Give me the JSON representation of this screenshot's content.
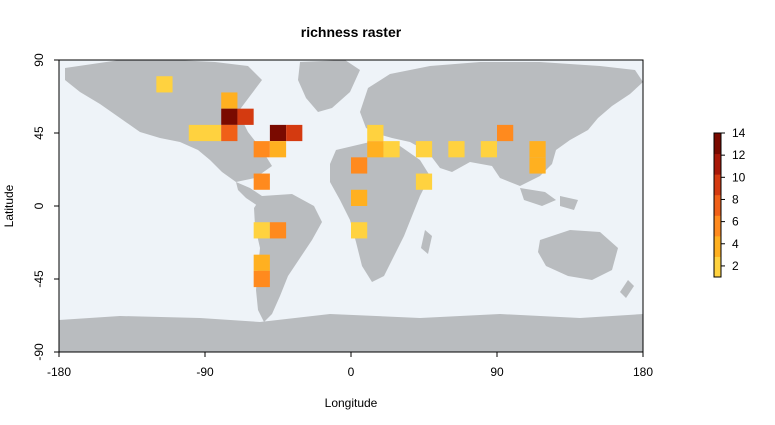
{
  "chart_data": {
    "type": "heatmap",
    "title": "richness raster",
    "xlabel": "Longitude",
    "ylabel": "Latitude",
    "xlim": [
      -180,
      180
    ],
    "ylim": [
      -90,
      90
    ],
    "x_ticks": [
      -180,
      -90,
      0,
      90,
      180
    ],
    "y_ticks": [
      -90,
      -45,
      0,
      45,
      90
    ],
    "x_tick_labels": [
      "-180",
      "-90",
      "0",
      "90",
      "180"
    ],
    "y_tick_labels": [
      "-90",
      "-45",
      "0",
      "45",
      "90"
    ],
    "cell_size_deg": 10,
    "legend": {
      "placement": "right",
      "range": [
        1,
        14
      ],
      "ticks": [
        2,
        4,
        6,
        8,
        10,
        12,
        14
      ],
      "tick_labels": [
        "2",
        "4",
        "6",
        "8",
        "10",
        "12",
        "14"
      ],
      "colors": [
        "#ffd23f",
        "#ffb020",
        "#ff8a1e",
        "#f06018",
        "#d43a10",
        "#a81808",
        "#7a0a00"
      ]
    },
    "cells": [
      {
        "lon": -115,
        "lat": 75,
        "value": 2
      },
      {
        "lon": -75,
        "lat": 65,
        "value": 4
      },
      {
        "lon": -75,
        "lat": 55,
        "value": 14
      },
      {
        "lon": -65,
        "lat": 55,
        "value": 10
      },
      {
        "lon": -95,
        "lat": 45,
        "value": 2
      },
      {
        "lon": -85,
        "lat": 45,
        "value": 2
      },
      {
        "lon": -75,
        "lat": 45,
        "value": 8
      },
      {
        "lon": -45,
        "lat": 45,
        "value": 13
      },
      {
        "lon": -35,
        "lat": 45,
        "value": 9
      },
      {
        "lon": -55,
        "lat": 35,
        "value": 5
      },
      {
        "lon": -45,
        "lat": 35,
        "value": 3
      },
      {
        "lon": -55,
        "lat": 15,
        "value": 5
      },
      {
        "lon": -55,
        "lat": -15,
        "value": 2
      },
      {
        "lon": -45,
        "lat": -15,
        "value": 5
      },
      {
        "lon": -55,
        "lat": -35,
        "value": 3
      },
      {
        "lon": -55,
        "lat": -45,
        "value": 6
      },
      {
        "lon": 15,
        "lat": 45,
        "value": 2
      },
      {
        "lon": 15,
        "lat": 35,
        "value": 3
      },
      {
        "lon": 25,
        "lat": 35,
        "value": 2
      },
      {
        "lon": 45,
        "lat": 35,
        "value": 2
      },
      {
        "lon": 65,
        "lat": 35,
        "value": 2
      },
      {
        "lon": 85,
        "lat": 35,
        "value": 2
      },
      {
        "lon": 95,
        "lat": 45,
        "value": 6
      },
      {
        "lon": 115,
        "lat": 35,
        "value": 4
      },
      {
        "lon": 115,
        "lat": 25,
        "value": 4
      },
      {
        "lon": 5,
        "lat": 25,
        "value": 5
      },
      {
        "lon": 45,
        "lat": 15,
        "value": 2
      },
      {
        "lon": 5,
        "lat": 5,
        "value": 3
      },
      {
        "lon": 5,
        "lat": -15,
        "value": 2
      }
    ]
  },
  "colors": {
    "ocean": "#eef3f8",
    "land": "#b9bcbf",
    "frame": "#000000"
  }
}
